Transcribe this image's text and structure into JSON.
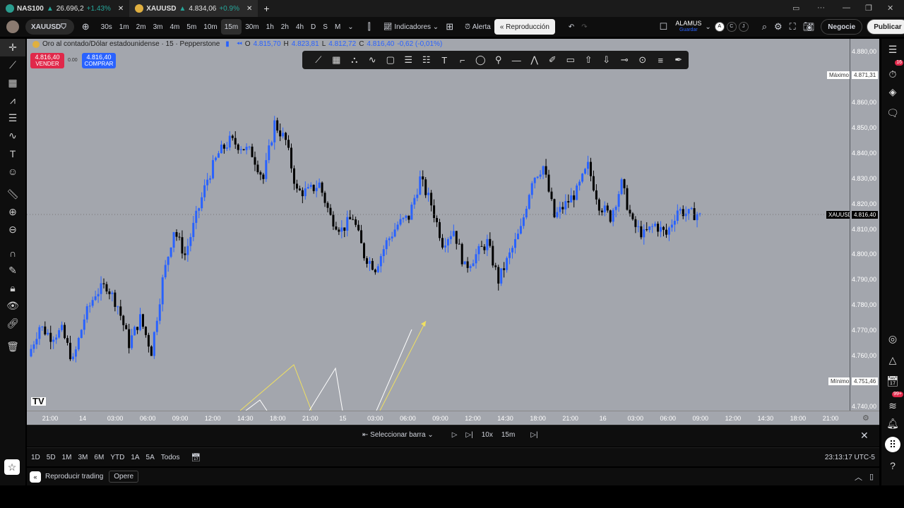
{
  "tabs": [
    {
      "symbol": "NAS100",
      "price": "26.696,2",
      "change": "+1.43%",
      "icon_color": "#2a9d8f",
      "icon_text": "100"
    },
    {
      "symbol": "XAUUSD",
      "price": "4.834,06",
      "change": "+0.9%",
      "icon_color": "#e0b040"
    }
  ],
  "toolbar": {
    "symbol": "XAUUSD",
    "intervals": [
      "30s",
      "1m",
      "2m",
      "3m",
      "4m",
      "5m",
      "10m",
      "15m",
      "30m",
      "1h",
      "2h",
      "4h",
      "D",
      "S",
      "M"
    ],
    "selected_interval": "15m",
    "indicators": "Indicadores",
    "alert": "Alerta",
    "replay": "Reproducción",
    "layout_name": "ALAMUS",
    "layout_save": "Guardar",
    "circles": [
      "A",
      "C",
      "J"
    ],
    "trade": "Negocie",
    "publish": "Publicar"
  },
  "legend": {
    "title": "Oro al contado/Dólar estadounidense · 15 · Pepperstone",
    "o": "4.815,70",
    "h": "4.823,81",
    "l": "4.812,72",
    "c": "4.816,40",
    "chg": "-0,62 (-0,01%)",
    "sell_price": "4.816,40",
    "sell_label": "VENDER",
    "spread": "0.00",
    "buy_price": "4.816,40",
    "buy_label": "COMPRAR"
  },
  "price_axis": {
    "ticks": [
      "4.880,00",
      "4.860,00",
      "4.850,00",
      "4.840,00",
      "4.830,00",
      "4.820,00",
      "4.810,00",
      "4.800,00",
      "4.790,00",
      "4.780,00",
      "4.770,00",
      "4.760,00",
      "4.740,00"
    ],
    "max_label": "Máximo",
    "max_value": "4.871,31",
    "min_label": "Mínimo",
    "min_value": "4.751,46",
    "current_label": "XAUUSD",
    "current_value": "4.816,40"
  },
  "time_axis": [
    "21:00",
    "14",
    "03:00",
    "06:00",
    "09:00",
    "12:00",
    "14:30",
    "18:00",
    "21:00",
    "15",
    "03:00",
    "06:00",
    "09:00",
    "12:00",
    "14:30",
    "18:00",
    "21:00",
    "16",
    "03:00",
    "06:00",
    "09:00",
    "12:00",
    "14:30",
    "18:00",
    "21:00"
  ],
  "chart_data": {
    "type": "candlestick",
    "interval": "15m",
    "ylim": [
      4740,
      4880
    ],
    "closes": [
      4760,
      4772,
      4768,
      4770,
      4758,
      4775,
      4785,
      4788,
      4780,
      4765,
      4775,
      4762,
      4790,
      4810,
      4800,
      4815,
      4830,
      4840,
      4845,
      4843,
      4840,
      4830,
      4852,
      4845,
      4825,
      4825,
      4828,
      4815,
      4810,
      4815,
      4800,
      4795,
      4805,
      4812,
      4815,
      4830,
      4820,
      4805,
      4810,
      4795,
      4800,
      4805,
      4790,
      4800,
      4810,
      4830,
      4835,
      4815,
      4820,
      4825,
      4835,
      4820,
      4815,
      4828,
      4812,
      4808,
      4812,
      4808,
      4818,
      4816,
      4816.4
    ],
    "up_color": "#2962ff",
    "down_color": "#000000"
  },
  "replay_bar": {
    "select": "Seleccionar barra",
    "speed": "10x",
    "interval": "15m"
  },
  "ranges": [
    "1D",
    "5D",
    "1M",
    "3M",
    "6M",
    "YTD",
    "1A",
    "5A",
    "Todos"
  ],
  "clock": "23:13:17 UTC-5",
  "bottom": {
    "replay_trading": "Reproducir trading",
    "trade": "Opere"
  },
  "badges": {
    "alerts": "16",
    "notifications": "99+"
  }
}
